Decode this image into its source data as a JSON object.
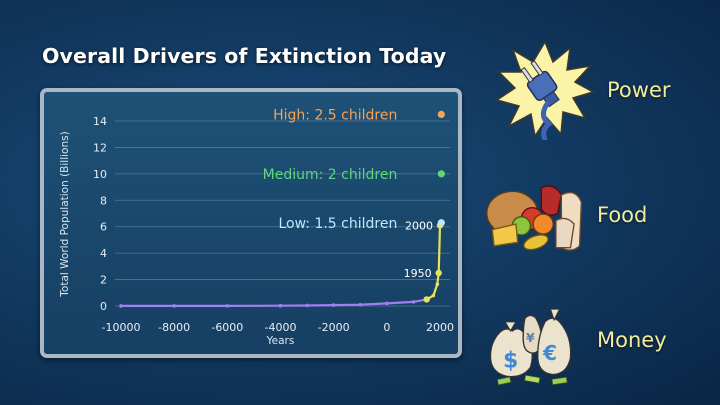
{
  "title": "Overall Drivers of Extinction Today",
  "colors": {
    "history_line": "#a17ff0",
    "growth_line": "#e6e25c",
    "high": "#f3a35a",
    "medium": "#5fd67a",
    "low": "#bfe6ff",
    "driver_label": "#f3ec9a"
  },
  "chart_data": {
    "type": "line",
    "title": "",
    "xlabel": "Years",
    "ylabel": "Total World Population (Billions)",
    "xlim": [
      -10000,
      2000
    ],
    "ylim": [
      0,
      14
    ],
    "x_ticks": [
      "-10000",
      "-8000",
      "-6000",
      "-4000",
      "-2000",
      "0",
      "2000"
    ],
    "y_ticks": [
      "0",
      "2",
      "4",
      "6",
      "8",
      "10",
      "12",
      "14"
    ],
    "series": [
      {
        "points": [
          [
            -10000,
            0.004
          ],
          [
            -8000,
            0.005
          ],
          [
            -6000,
            0.01
          ],
          [
            -4000,
            0.02
          ],
          [
            -3000,
            0.04
          ],
          [
            -2000,
            0.07
          ],
          [
            -1000,
            0.1
          ],
          [
            0,
            0.2
          ],
          [
            1000,
            0.31
          ],
          [
            1500,
            0.5
          ],
          [
            1750,
            0.79
          ],
          [
            1900,
            1.65
          ],
          [
            1950,
            2.5
          ],
          [
            2000,
            6.1
          ]
        ]
      }
    ],
    "projections": [
      {
        "label": "High: 2.5 children",
        "x": 2050,
        "y": 14.5
      },
      {
        "label": "Medium: 2 children",
        "x": 2050,
        "y": 10.0
      },
      {
        "label": "Low: 1.5 children",
        "x": 2050,
        "y": 6.3
      }
    ],
    "annotations": [
      {
        "text": "1950",
        "x": 1950,
        "y": 2.5
      },
      {
        "text": "2000",
        "x": 2000,
        "y": 6.1
      }
    ]
  },
  "drivers": [
    {
      "label": "Power",
      "icon": "power-plug-icon"
    },
    {
      "label": "Food",
      "icon": "food-basket-icon"
    },
    {
      "label": "Money",
      "icon": "money-bags-icon"
    }
  ]
}
